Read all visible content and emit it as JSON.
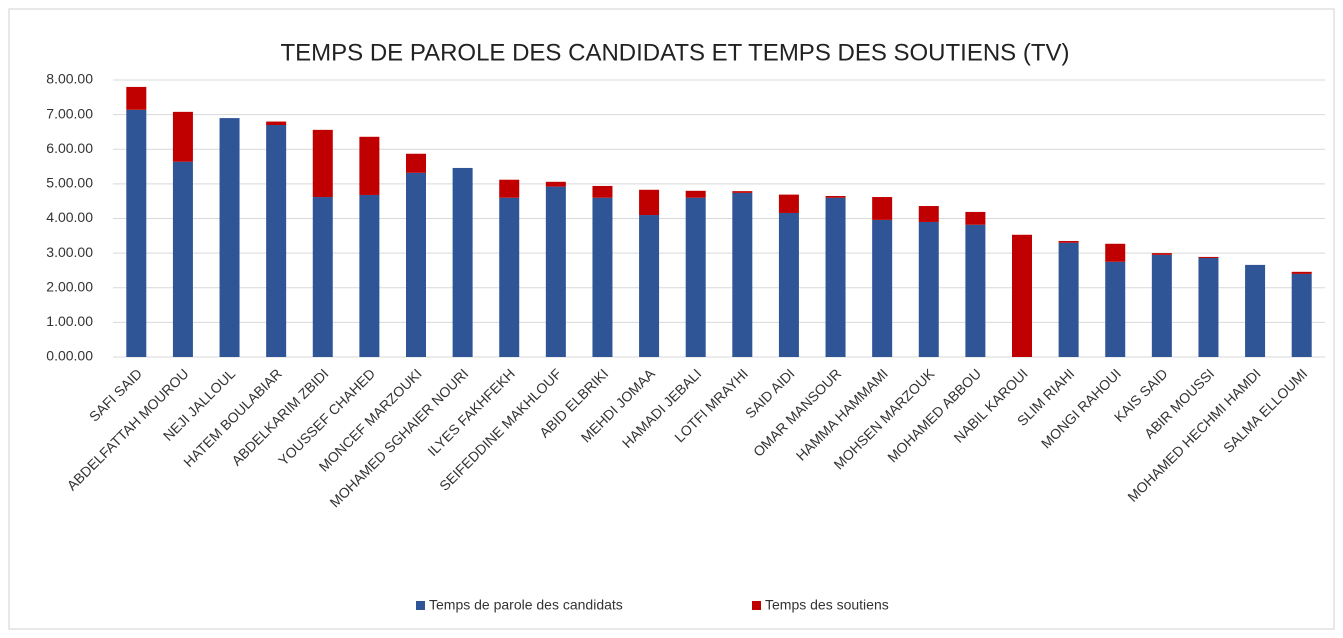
{
  "chart_data": {
    "type": "stacked_bar",
    "title": "TEMPS DE PAROLE DES CANDIDATS ET TEMPS DES SOUTIENS (TV)",
    "categories": [
      "SAFI SAID",
      "ABDELFATTAH MOUROU",
      "NEJI JALLOUL",
      "HATEM BOULABIAR",
      "ABDELKARIM ZBIDI",
      "YOUSSEF CHAHED",
      "MONCEF MARZOUKI",
      "MOHAMED SGHAIER NOURI",
      "ILYES FAKHFEKH",
      "SEIFEDDINE MAKHLOUF",
      "ABID ELBRIKI",
      "MEHDI JOMAA",
      "HAMADI JEBALI",
      "LOTFI MRAYHI",
      "SAID AIDI",
      "OMAR MANSOUR",
      "HAMMA HAMMAMI",
      "MOHSEN MARZOUK",
      "MOHAMED ABBOU",
      "NABIL KAROUI",
      "SLIM RIAHI",
      "MONGI RAHOUI",
      "KAIS SAID",
      "ABIR MOUSSI",
      "MOHAMED HECHMI HAMDI",
      "SALMA ELLOUMI"
    ],
    "series": [
      {
        "name": "Temps de parole des candidats",
        "color": "#2f5597",
        "values": [
          7.14,
          5.64,
          6.9,
          6.7,
          4.62,
          4.68,
          5.32,
          5.46,
          4.6,
          4.92,
          4.6,
          4.1,
          4.6,
          4.74,
          4.16,
          4.6,
          3.96,
          3.9,
          3.82,
          0,
          3.3,
          2.75,
          2.95,
          2.86,
          2.66,
          2.4
        ]
      },
      {
        "name": "Temps des soutiens",
        "color": "#c00000",
        "values": [
          0.66,
          1.44,
          0,
          0.1,
          1.94,
          1.68,
          0.55,
          0,
          0.52,
          0.14,
          0.34,
          0.73,
          0.2,
          0.05,
          0.53,
          0.05,
          0.66,
          0.46,
          0.37,
          3.53,
          0.05,
          0.52,
          0.05,
          0.03,
          0,
          0.06
        ]
      }
    ],
    "ylim": [
      0,
      8
    ],
    "yticks": [
      {
        "value": 0,
        "label": "0.00.00"
      },
      {
        "value": 1,
        "label": "1.00.00"
      },
      {
        "value": 2,
        "label": "2.00.00"
      },
      {
        "value": 3,
        "label": "3.00.00"
      },
      {
        "value": 4,
        "label": "4.00.00"
      },
      {
        "value": 5,
        "label": "5.00.00"
      },
      {
        "value": 6,
        "label": "6.00.00"
      },
      {
        "value": 7,
        "label": "7.00.00"
      },
      {
        "value": 8,
        "label": "8.00.00"
      }
    ],
    "grid": true,
    "legend": "bottom"
  }
}
